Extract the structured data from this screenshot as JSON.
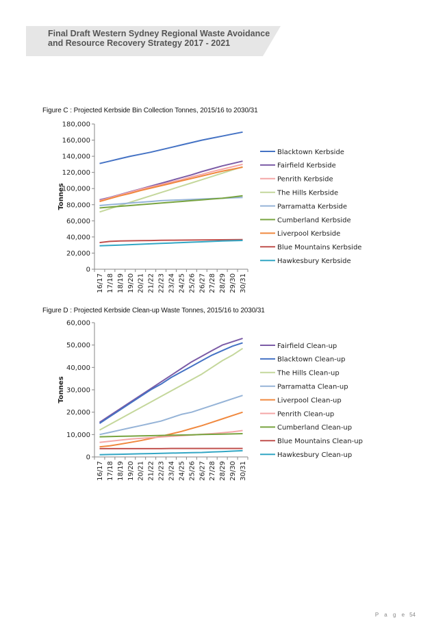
{
  "header": {
    "title_line1": "Final Draft Western Sydney Regional Waste Avoidance",
    "title_line2": "and Resource Recovery Strategy 2017 - 2021"
  },
  "figures": {
    "c_caption": "Figure C : Projected Kerbside Bin Collection Tonnes, 2015/16 to 2030/31",
    "d_caption": "Figure D :  Projected Kerbside Clean-up Waste Tonnes, 2015/16 to 2030/31"
  },
  "footer": {
    "page_label": "P a g e",
    "page_number": "54"
  },
  "chart_data": [
    {
      "type": "line",
      "title": "Figure C : Projected Kerbside Bin Collection Tonnes, 2015/16 to 2030/31",
      "xlabel": "",
      "ylabel": "Tonnes",
      "categories": [
        "16/17",
        "17/18",
        "18/19",
        "19/20",
        "20/21",
        "21/22",
        "22/23",
        "23/24",
        "24/25",
        "25/26",
        "26/27",
        "27/28",
        "28/29",
        "29/30",
        "30/31"
      ],
      "ylim": [
        0,
        180000
      ],
      "yticks": [
        "0",
        "20,000",
        "40,000",
        "60,000",
        "80,000",
        "100,000",
        "120,000",
        "140,000",
        "160,000",
        "180,000"
      ],
      "grid": false,
      "legend": "right",
      "series": [
        {
          "name": "Blacktown Kerbside",
          "color": "#4472C4",
          "values": [
            131000,
            134000,
            137000,
            140000,
            142500,
            145000,
            148000,
            151000,
            154000,
            157000,
            160000,
            162500,
            165000,
            167500,
            170000
          ]
        },
        {
          "name": "Fairfield Kerbside",
          "color": "#7B5BA6",
          "values": [
            86000,
            89000,
            92500,
            96000,
            99500,
            103000,
            106500,
            110000,
            113500,
            117000,
            121000,
            124500,
            128000,
            131000,
            134000
          ]
        },
        {
          "name": "Penrith Kerbside",
          "color": "#F4A6A6",
          "values": [
            85000,
            88500,
            92000,
            95500,
            99000,
            102000,
            105000,
            108000,
            111000,
            114500,
            117500,
            121000,
            124000,
            127000,
            130000
          ]
        },
        {
          "name": "The Hills Kerbside",
          "color": "#C4D79B",
          "values": [
            71000,
            75000,
            79000,
            83000,
            87000,
            91000,
            95000,
            99000,
            103000,
            107000,
            111000,
            115000,
            119000,
            123000,
            127000
          ]
        },
        {
          "name": "Parramatta Kerbside",
          "color": "#95B3D7",
          "values": [
            79000,
            80000,
            81000,
            82000,
            83000,
            84000,
            85000,
            85500,
            86000,
            86500,
            87000,
            87500,
            88000,
            88500,
            89000
          ]
        },
        {
          "name": "Cumberland Kerbside",
          "color": "#77A33F",
          "values": [
            76000,
            77000,
            78000,
            79000,
            80000,
            81000,
            82000,
            83000,
            84000,
            85000,
            86000,
            87000,
            88000,
            89500,
            91000
          ]
        },
        {
          "name": "Liverpool Kerbside",
          "color": "#F0883E",
          "values": [
            84000,
            87500,
            91000,
            94000,
            97500,
            100500,
            103500,
            106500,
            109500,
            112500,
            115500,
            118500,
            121500,
            124000,
            126500
          ]
        },
        {
          "name": "Blue Mountains Kerbside",
          "color": "#C0504D",
          "values": [
            33000,
            34500,
            35000,
            35200,
            35400,
            35600,
            35800,
            36000,
            36100,
            36200,
            36300,
            36400,
            36500,
            36600,
            36700
          ]
        },
        {
          "name": "Hawkesbury Kerbside",
          "color": "#31A6C4",
          "values": [
            29000,
            29500,
            30000,
            30500,
            31000,
            31500,
            32000,
            32500,
            33000,
            33500,
            34000,
            34500,
            35000,
            35300,
            35700
          ]
        }
      ]
    },
    {
      "type": "line",
      "title": "Figure D :  Projected Kerbside Clean-up Waste Tonnes, 2015/16 to 2030/31",
      "xlabel": "",
      "ylabel": "Tonnes",
      "categories": [
        "16/17",
        "17/18",
        "18/19",
        "19/20",
        "20/21",
        "21/22",
        "22/23",
        "23/24",
        "24/25",
        "25/26",
        "26/27",
        "27/28",
        "28/29",
        "29/30",
        "30/31"
      ],
      "ylim": [
        0,
        60000
      ],
      "yticks": [
        "0",
        "10,000",
        "20,000",
        "30,000",
        "40,000",
        "50,000",
        "60,000"
      ],
      "grid": false,
      "legend": "right",
      "series": [
        {
          "name": "Fairfield Clean-up",
          "color": "#7B5BA6",
          "values": [
            15500,
            18500,
            21500,
            24500,
            27500,
            30500,
            33500,
            36500,
            39500,
            42500,
            45000,
            47500,
            50000,
            51500,
            53000
          ]
        },
        {
          "name": "Blacktown Clean-up",
          "color": "#4472C4",
          "values": [
            15000,
            18000,
            21000,
            24000,
            27000,
            30000,
            32500,
            35500,
            38000,
            40500,
            43000,
            45500,
            47500,
            49500,
            51000
          ]
        },
        {
          "name": "The Hills Clean-up",
          "color": "#C4D79B",
          "values": [
            12000,
            14500,
            17000,
            19500,
            22000,
            24500,
            27000,
            29500,
            32000,
            34500,
            37000,
            40000,
            43000,
            45500,
            48500
          ]
        },
        {
          "name": "Parramatta Clean-up",
          "color": "#95B3D7",
          "values": [
            10000,
            11000,
            12000,
            13000,
            14000,
            15000,
            16000,
            17500,
            19000,
            20000,
            21500,
            23000,
            24500,
            26000,
            27500
          ]
        },
        {
          "name": "Liverpool Clean-up",
          "color": "#F0883E",
          "values": [
            4500,
            5000,
            5700,
            6500,
            7300,
            8200,
            9200,
            10300,
            11400,
            12700,
            14000,
            15500,
            17000,
            18500,
            20000
          ]
        },
        {
          "name": "Penrith Clean-up",
          "color": "#F4A6A6",
          "values": [
            6500,
            7000,
            7500,
            8000,
            8300,
            8600,
            8900,
            9200,
            9500,
            9800,
            10100,
            10400,
            10800,
            11200,
            11800
          ]
        },
        {
          "name": "Cumberland Clean-up",
          "color": "#77A33F",
          "values": [
            9000,
            9100,
            9200,
            9300,
            9400,
            9500,
            9600,
            9700,
            9800,
            9900,
            10000,
            10100,
            10200,
            10300,
            10400
          ]
        },
        {
          "name": "Blue Mountains Clean-up",
          "color": "#C0504D",
          "values": [
            3700,
            3700,
            3700,
            3700,
            3700,
            3700,
            3700,
            3800,
            3800,
            3800,
            3800,
            3800,
            3800,
            3800,
            3800
          ]
        },
        {
          "name": "Hawkesbury Clean-up",
          "color": "#31A6C4",
          "values": [
            1000,
            1100,
            1200,
            1300,
            1400,
            1500,
            1600,
            1700,
            1800,
            1900,
            2000,
            2200,
            2400,
            2600,
            2800
          ]
        }
      ]
    }
  ]
}
